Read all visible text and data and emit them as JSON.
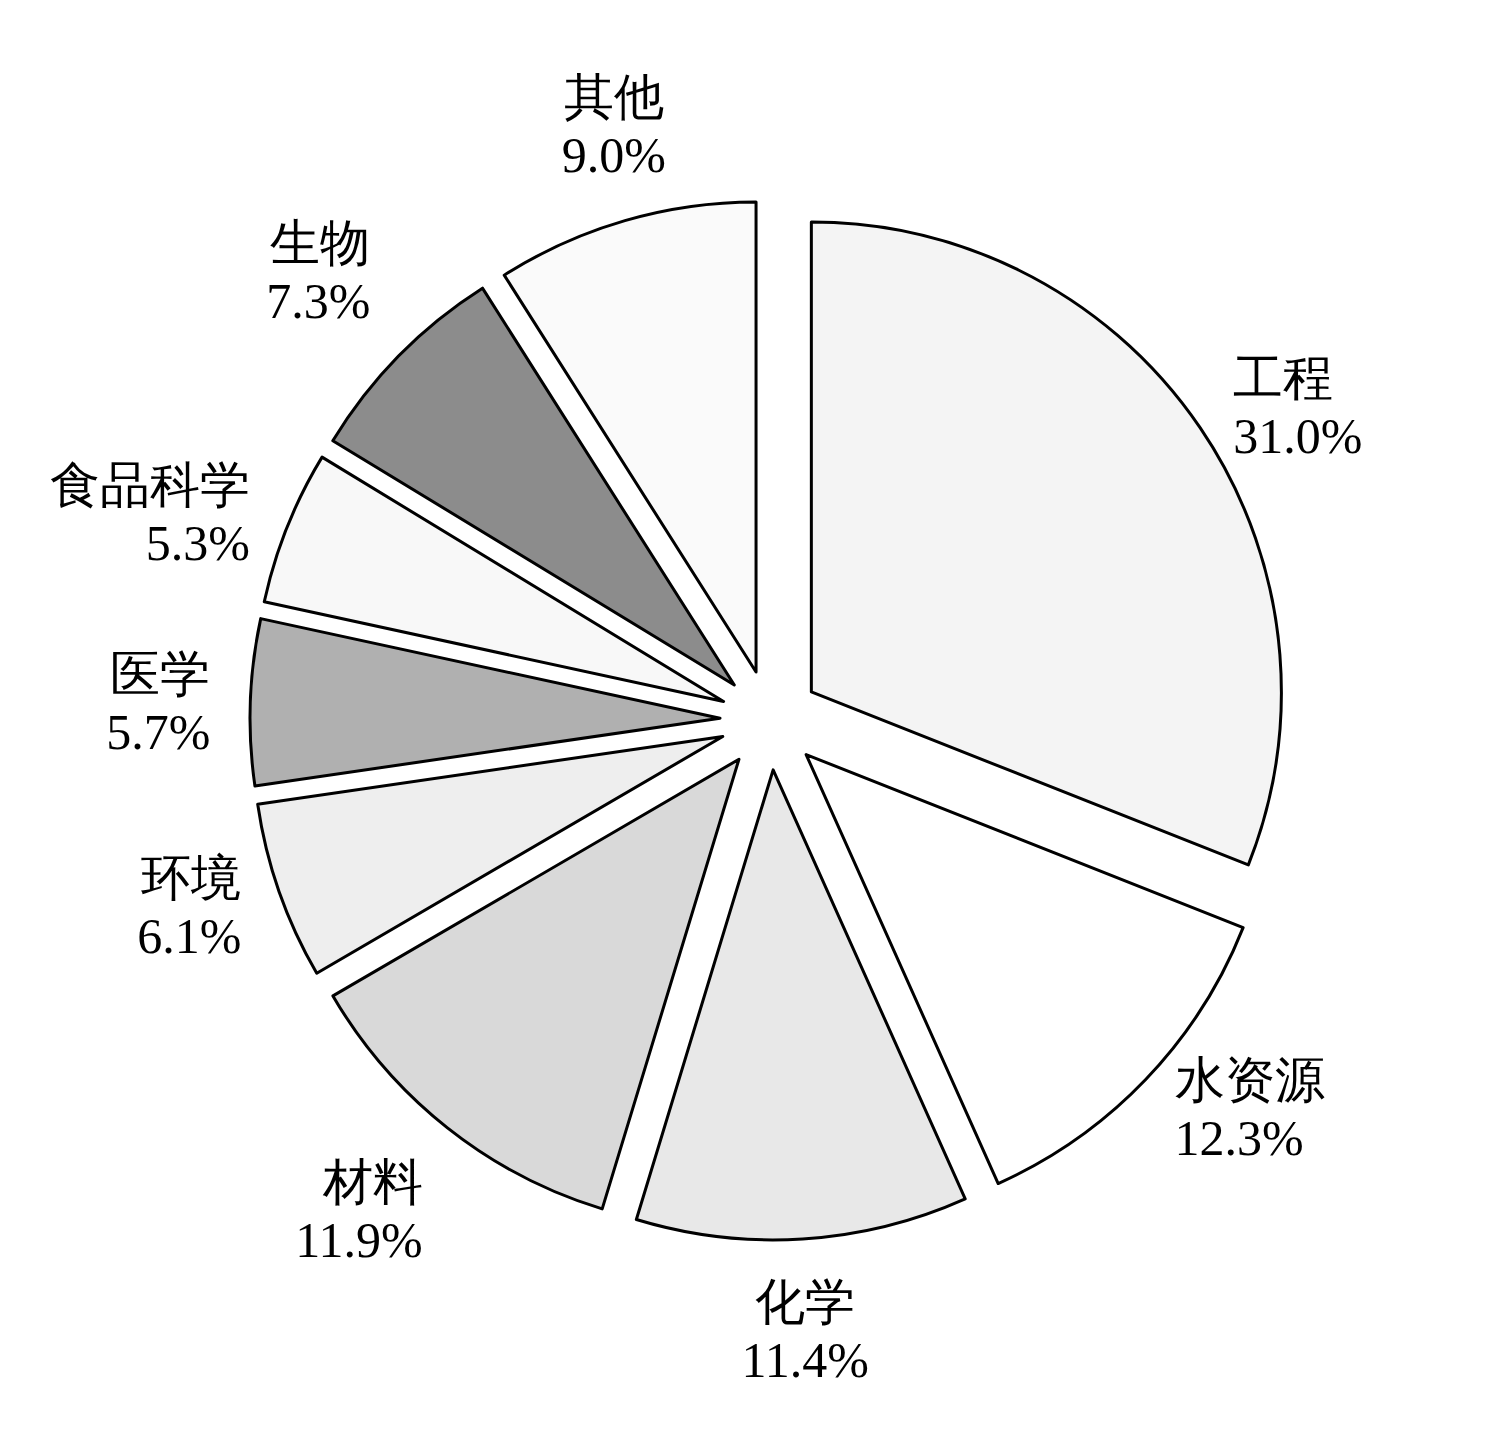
{
  "chart_data": {
    "type": "pie",
    "categories": [
      "工程",
      "水资源",
      "化学",
      "材料",
      "环境",
      "医学",
      "食品科学",
      "生物",
      "其他"
    ],
    "values": [
      31.0,
      12.3,
      11.4,
      11.9,
      6.1,
      5.7,
      5.3,
      7.3,
      9.0
    ],
    "value_labels": [
      "31.0%",
      "12.3%",
      "11.4%",
      "11.9%",
      "6.1%",
      "5.7%",
      "5.3%",
      "7.3%",
      "9.0%"
    ],
    "colors": [
      "#f4f4f4",
      "#ffffff",
      "#e8e8e8",
      "#d9d9d9",
      "#eeeeee",
      "#b0b0b0",
      "#f8f8f8",
      "#8c8c8c",
      "#fafafa"
    ]
  }
}
